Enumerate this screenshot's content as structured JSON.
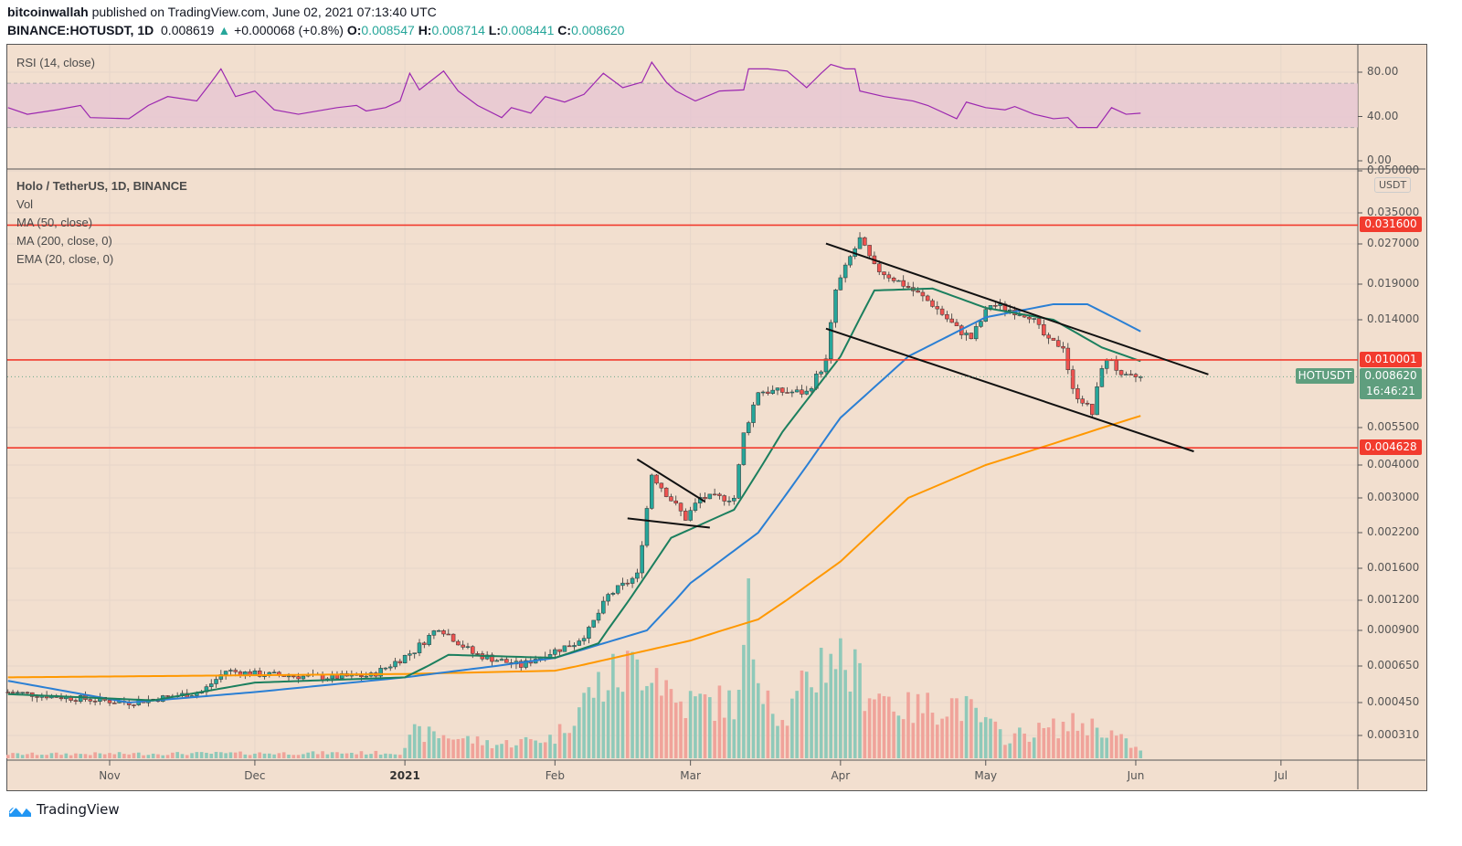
{
  "header": {
    "author": "bitcoinwallah",
    "published": " published on TradingView.com, June 02, 2021 07:13:40 UTC",
    "symbol": "BINANCE:HOTUSDT, 1D",
    "last": "0.008619",
    "change": "+0.000068 (+0.8%)",
    "o_label": "O:",
    "o": "0.008547",
    "h_label": "H:",
    "h": "0.008714",
    "l_label": "L:",
    "l": "0.008441",
    "c_label": "C:",
    "c": "0.008620"
  },
  "legend": {
    "rsi": "RSI (14, close)",
    "title": "Holo / TetherUS, 1D, BINANCE",
    "vol": "Vol",
    "ma50": "MA (50, close)",
    "ma200": "MA (200, close, 0)",
    "ema20": "EMA (20, close, 0)"
  },
  "colors": {
    "up": "#26a69a",
    "down": "#ef5350",
    "ma50": "#2a7fd4",
    "ma200": "#ff9800",
    "ema20": "#1b7f5e",
    "rsi": "#9c27b0",
    "levels": "#f23b2e",
    "bg": "#f2dfcf"
  },
  "price_axis": {
    "currency": "USDT",
    "scale": "log",
    "ticks": [
      "0.050000",
      "0.035000",
      "0.027000",
      "0.019000",
      "0.014000",
      "0.005500",
      "0.004000",
      "0.003000",
      "0.002200",
      "0.001600",
      "0.001200",
      "0.000900",
      "0.000650",
      "0.000450",
      "0.000310"
    ]
  },
  "rsi_axis": {
    "ticks": [
      "80.00",
      "40.00",
      "0.00"
    ],
    "bands": [
      70,
      30
    ]
  },
  "time_axis": [
    {
      "label": "Nov",
      "date": "2020-11-01"
    },
    {
      "label": "Dec",
      "date": "2020-12-01"
    },
    {
      "label": "2021",
      "date": "2021-01-01",
      "bold": true
    },
    {
      "label": "Feb",
      "date": "2021-02-01"
    },
    {
      "label": "Mar",
      "date": "2021-03-01"
    },
    {
      "label": "Apr",
      "date": "2021-04-01"
    },
    {
      "label": "May",
      "date": "2021-05-01"
    },
    {
      "label": "Jun",
      "date": "2021-06-01"
    },
    {
      "label": "Jul",
      "date": "2021-07-01"
    }
  ],
  "levels": [
    {
      "price": 0.0316,
      "label": "0.031600"
    },
    {
      "price": 0.010001,
      "label": "0.010001"
    },
    {
      "price": 0.004628,
      "label": "0.004628"
    }
  ],
  "current": {
    "price": 0.00862,
    "label": "0.008620",
    "symbol": "HOTUSDT",
    "countdown": "16:46:21"
  },
  "chart_data": {
    "type": "candlestick",
    "close_approx": [
      [
        "2020-10-11",
        0.0005
      ],
      [
        "2020-10-25",
        0.00047
      ],
      [
        "2020-11-05",
        0.00045
      ],
      [
        "2020-11-20",
        0.0005
      ],
      [
        "2020-11-25",
        0.00062
      ],
      [
        "2020-12-01",
        0.0006
      ],
      [
        "2020-12-15",
        0.00058
      ],
      [
        "2020-12-25",
        0.00059
      ],
      [
        "2021-01-03",
        0.00075
      ],
      [
        "2021-01-08",
        0.00093
      ],
      [
        "2021-01-15",
        0.00073
      ],
      [
        "2021-01-25",
        0.00065
      ],
      [
        "2021-01-28",
        0.0007
      ],
      [
        "2021-02-05",
        0.0008
      ],
      [
        "2021-02-08",
        0.0009
      ],
      [
        "2021-02-12",
        0.00125
      ],
      [
        "2021-02-18",
        0.0015
      ],
      [
        "2021-02-21",
        0.0037
      ],
      [
        "2021-02-28",
        0.0025
      ],
      [
        "2021-03-03",
        0.003
      ],
      [
        "2021-03-10",
        0.003
      ],
      [
        "2021-03-12",
        0.0052
      ],
      [
        "2021-03-15",
        0.0076
      ],
      [
        "2021-03-25",
        0.0075
      ],
      [
        "2021-03-29",
        0.0099
      ],
      [
        "2021-03-31",
        0.018
      ],
      [
        "2021-04-03",
        0.024
      ],
      [
        "2021-04-05",
        0.028
      ],
      [
        "2021-04-08",
        0.022
      ],
      [
        "2021-04-15",
        0.0185
      ],
      [
        "2021-04-20",
        0.016
      ],
      [
        "2021-04-25",
        0.013
      ],
      [
        "2021-04-28",
        0.012
      ],
      [
        "2021-05-02",
        0.016
      ],
      [
        "2021-05-10",
        0.0146
      ],
      [
        "2021-05-14",
        0.0116
      ],
      [
        "2021-05-17",
        0.0113
      ],
      [
        "2021-05-19",
        0.0076
      ],
      [
        "2021-05-21",
        0.007
      ],
      [
        "2021-05-23",
        0.0062
      ],
      [
        "2021-05-25",
        0.0095
      ],
      [
        "2021-05-27",
        0.0101
      ],
      [
        "2021-05-29",
        0.0085
      ],
      [
        "2021-06-02",
        0.00862
      ]
    ],
    "ma200": [
      [
        "2020-10-11",
        0.00058
      ],
      [
        "2021-01-01",
        0.0006
      ],
      [
        "2021-02-01",
        0.00062
      ],
      [
        "2021-03-01",
        0.00082
      ],
      [
        "2021-03-15",
        0.001
      ],
      [
        "2021-04-01",
        0.0017
      ],
      [
        "2021-04-15",
        0.003
      ],
      [
        "2021-05-01",
        0.004
      ],
      [
        "2021-05-15",
        0.0048
      ],
      [
        "2021-06-02",
        0.0061
      ]
    ],
    "ma50": [
      [
        "2020-10-11",
        0.00056
      ],
      [
        "2020-11-05",
        0.00045
      ],
      [
        "2020-12-01",
        0.0005
      ],
      [
        "2021-01-01",
        0.00058
      ],
      [
        "2021-02-01",
        0.0007
      ],
      [
        "2021-02-20",
        0.0009
      ],
      [
        "2021-03-01",
        0.0014
      ],
      [
        "2021-03-15",
        0.0022
      ],
      [
        "2021-04-01",
        0.006
      ],
      [
        "2021-04-15",
        0.0103
      ],
      [
        "2021-05-01",
        0.0143
      ],
      [
        "2021-05-15",
        0.016
      ],
      [
        "2021-05-22",
        0.016
      ],
      [
        "2021-06-02",
        0.0127
      ]
    ],
    "ema20": [
      [
        "2020-10-11",
        0.00049
      ],
      [
        "2020-11-10",
        0.00046
      ],
      [
        "2020-12-01",
        0.00055
      ],
      [
        "2021-01-01",
        0.00058
      ],
      [
        "2021-01-10",
        0.00072
      ],
      [
        "2021-02-01",
        0.0007
      ],
      [
        "2021-02-10",
        0.0008
      ],
      [
        "2021-02-25",
        0.0021
      ],
      [
        "2021-03-10",
        0.0027
      ],
      [
        "2021-03-20",
        0.0053
      ],
      [
        "2021-04-01",
        0.0103
      ],
      [
        "2021-04-08",
        0.018
      ],
      [
        "2021-04-20",
        0.0183
      ],
      [
        "2021-05-01",
        0.0155
      ],
      [
        "2021-05-15",
        0.014
      ],
      [
        "2021-05-25",
        0.0111
      ],
      [
        "2021-06-02",
        0.0099
      ]
    ],
    "volume_relative": [
      [
        "2020-10-11",
        3
      ],
      [
        "2020-12-31",
        4
      ],
      [
        "2021-01-03",
        18
      ],
      [
        "2021-01-10",
        16
      ],
      [
        "2021-01-20",
        10
      ],
      [
        "2021-02-01",
        15
      ],
      [
        "2021-02-09",
        50
      ],
      [
        "2021-02-21",
        72
      ],
      [
        "2021-02-26",
        40
      ],
      [
        "2021-03-11",
        40
      ],
      [
        "2021-03-12",
        75
      ],
      [
        "2021-03-13",
        100
      ],
      [
        "2021-03-14",
        80
      ],
      [
        "2021-03-20",
        25
      ],
      [
        "2021-03-30",
        80
      ],
      [
        "2021-04-05",
        55
      ],
      [
        "2021-04-15",
        35
      ],
      [
        "2021-04-25",
        40
      ],
      [
        "2021-05-05",
        15
      ],
      [
        "2021-05-20",
        25
      ],
      [
        "2021-05-25",
        22
      ],
      [
        "2021-06-02",
        5
      ]
    ],
    "rsi": [
      [
        "2020-10-11",
        48
      ],
      [
        "2020-10-15",
        42
      ],
      [
        "2020-10-21",
        46
      ],
      [
        "2020-10-26",
        50
      ],
      [
        "2020-10-28",
        39
      ],
      [
        "2020-11-05",
        38
      ],
      [
        "2020-11-09",
        50
      ],
      [
        "2020-11-13",
        58
      ],
      [
        "2020-11-19",
        54
      ],
      [
        "2020-11-22",
        71
      ],
      [
        "2020-11-24",
        83
      ],
      [
        "2020-11-27",
        58
      ],
      [
        "2020-12-01",
        63
      ],
      [
        "2020-12-05",
        46
      ],
      [
        "2020-12-10",
        42
      ],
      [
        "2020-12-18",
        48
      ],
      [
        "2020-12-22",
        50
      ],
      [
        "2020-12-24",
        45
      ],
      [
        "2020-12-28",
        48
      ],
      [
        "2020-12-31",
        54
      ],
      [
        "2021-01-02",
        79
      ],
      [
        "2021-01-04",
        64
      ],
      [
        "2021-01-09",
        81
      ],
      [
        "2021-01-12",
        63
      ],
      [
        "2021-01-16",
        50
      ],
      [
        "2021-01-21",
        39
      ],
      [
        "2021-01-23",
        48
      ],
      [
        "2021-01-27",
        43
      ],
      [
        "2021-01-30",
        58
      ],
      [
        "2021-02-03",
        53
      ],
      [
        "2021-02-07",
        60
      ],
      [
        "2021-02-11",
        79
      ],
      [
        "2021-02-15",
        66
      ],
      [
        "2021-02-19",
        71
      ],
      [
        "2021-02-21",
        89
      ],
      [
        "2021-02-24",
        71
      ],
      [
        "2021-02-26",
        63
      ],
      [
        "2021-03-02",
        54
      ],
      [
        "2021-03-07",
        63
      ],
      [
        "2021-03-12",
        64
      ],
      [
        "2021-03-13",
        83
      ],
      [
        "2021-03-17",
        83
      ],
      [
        "2021-03-21",
        81
      ],
      [
        "2021-03-25",
        66
      ],
      [
        "2021-03-28",
        79
      ],
      [
        "2021-03-30",
        87
      ],
      [
        "2021-04-02",
        83
      ],
      [
        "2021-04-04",
        83
      ],
      [
        "2021-04-05",
        63
      ],
      [
        "2021-04-10",
        58
      ],
      [
        "2021-04-16",
        54
      ],
      [
        "2021-04-19",
        50
      ],
      [
        "2021-04-25",
        38
      ],
      [
        "2021-04-27",
        53
      ],
      [
        "2021-05-01",
        48
      ],
      [
        "2021-05-05",
        46
      ],
      [
        "2021-05-07",
        49
      ],
      [
        "2021-05-11",
        42
      ],
      [
        "2021-05-15",
        38
      ],
      [
        "2021-05-18",
        39
      ],
      [
        "2021-05-20",
        30
      ],
      [
        "2021-05-24",
        30
      ],
      [
        "2021-05-27",
        48
      ],
      [
        "2021-05-30",
        42
      ],
      [
        "2021-06-02",
        43
      ]
    ],
    "trendlines": [
      [
        [
          "2021-03-29",
          0.0271
        ],
        [
          "2021-06-16",
          0.0088
        ]
      ],
      [
        [
          "2021-03-29",
          0.013
        ],
        [
          "2021-06-13",
          0.00449
        ]
      ],
      [
        [
          "2021-02-18",
          0.0042
        ],
        [
          "2021-03-04",
          0.0029
        ]
      ],
      [
        [
          "2021-02-16",
          0.0025
        ],
        [
          "2021-03-05",
          0.0023
        ]
      ]
    ]
  }
}
